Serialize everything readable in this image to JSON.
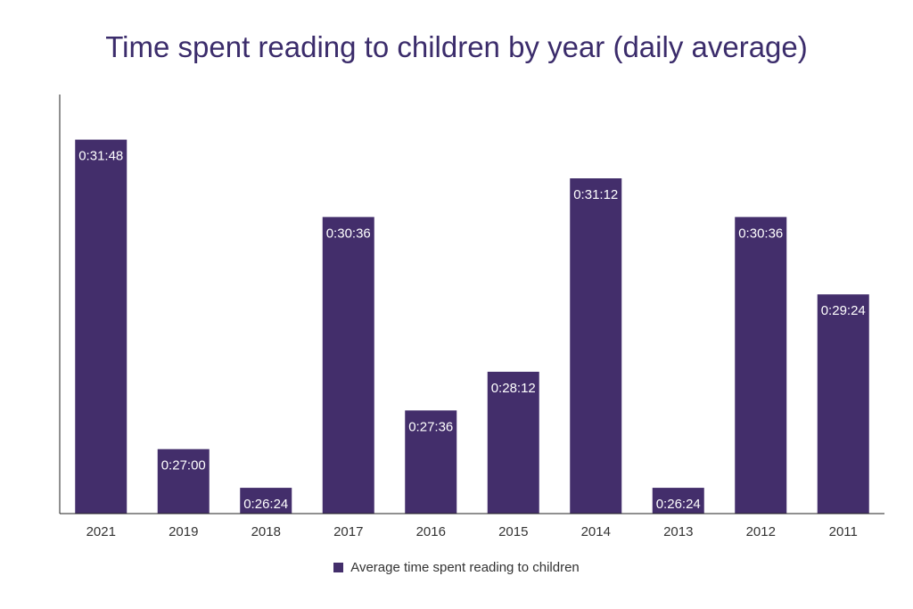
{
  "chart_data": {
    "type": "bar",
    "title": "Time spent reading to children by year (daily average)",
    "categories": [
      "2021",
      "2019",
      "2018",
      "2017",
      "2016",
      "2015",
      "2014",
      "2013",
      "2012",
      "2011"
    ],
    "series": [
      {
        "name": "Average time spent reading to children",
        "values": [
          "0:31:48",
          "0:27:00",
          "0:26:24",
          "0:30:36",
          "0:27:36",
          "0:28:12",
          "0:31:12",
          "0:26:24",
          "0:30:36",
          "0:29:24"
        ]
      }
    ],
    "ylim": [
      "0:26:00",
      "0:32:30"
    ],
    "grid": false,
    "legend": "bottom",
    "colors": {
      "bar": "#432e6b",
      "title": "#3b2c6b",
      "axis": "#333333"
    }
  }
}
